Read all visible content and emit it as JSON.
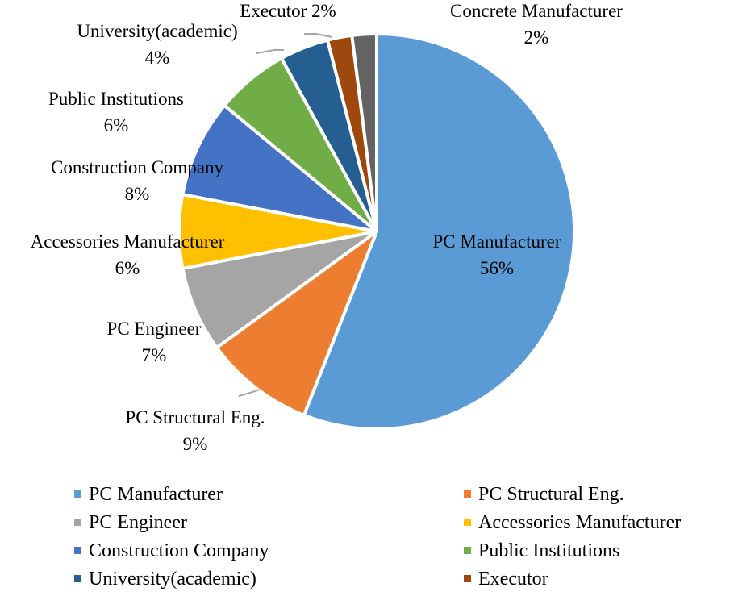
{
  "chart_data": {
    "type": "pie",
    "title": "",
    "slices": [
      {
        "name": "PC Manufacturer",
        "value": 56,
        "label": "56%",
        "color": "#5B9BD5"
      },
      {
        "name": "PC Structural Eng.",
        "value": 9,
        "label": "9%",
        "color": "#ED7D31"
      },
      {
        "name": "PC Engineer",
        "value": 7,
        "label": "7%",
        "color": "#A5A5A5"
      },
      {
        "name": "Accessories Manufacturer",
        "value": 6,
        "label": "6%",
        "color": "#FFC000"
      },
      {
        "name": "Construction Company",
        "value": 8,
        "label": "8%",
        "color": "#4472C4"
      },
      {
        "name": "Public Institutions",
        "value": 6,
        "label": "6%",
        "color": "#70AD47"
      },
      {
        "name": "University(academic)",
        "value": 4,
        "label": "4%",
        "color": "#255E91"
      },
      {
        "name": "Executor",
        "value": 2,
        "label": "2%",
        "color": "#9E480E"
      },
      {
        "name": "Concrete Manufacturer",
        "value": 2,
        "label": "2%",
        "color": "#636363"
      }
    ],
    "data_labels": {
      "pc_manufacturer": "PC Manufacturer",
      "pc_structural": "PC Structural Eng.",
      "pc_engineer": "PC Engineer",
      "accessories": "Accessories Manufacturer",
      "construction": "Construction Company",
      "public": "Public Institutions",
      "university": "University(academic)",
      "executor": "Executor 2%",
      "concrete": "Concrete Manufacturer"
    },
    "legend": [
      "PC Manufacturer",
      "PC Structural Eng.",
      "PC Engineer",
      "Accessories Manufacturer",
      "Construction Company",
      "Public Institutions",
      "University(academic)",
      "Executor"
    ],
    "legend_position": "bottom"
  }
}
